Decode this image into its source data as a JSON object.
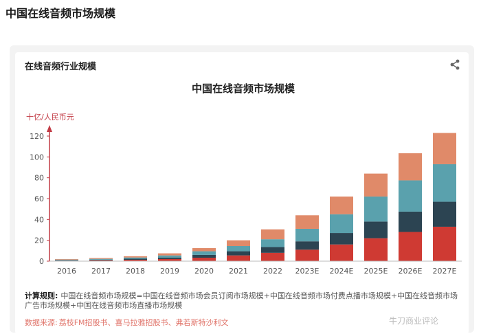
{
  "page": {
    "title": "中国在线音频市场规模"
  },
  "card": {
    "title": "在线音频行业规模"
  },
  "icons": {
    "share": "share-icon"
  },
  "formula": {
    "label": "计算规则:",
    "text": "中国在线音频市场规模=中国在线音频市场会员订阅市场规模+中国在线音频市场付费点播市场规模+中国在线音频市场广告市场规模+中国在线音频市场直播市场规模"
  },
  "source": {
    "label": "数据来源:",
    "text": "荔枝FM招股书、喜马拉雅招股书、弗若斯特沙利文"
  },
  "watermark": "牛刀商业评论",
  "colors": {
    "red": "#cf3a33",
    "navy": "#2c4452",
    "teal": "#5aa1ad",
    "salmon": "#e08a69",
    "axis": "#c23b45"
  },
  "chart_data": {
    "type": "bar",
    "stacked": true,
    "title": "中国在线音频市场规模",
    "ylabel": "十亿/人民币元",
    "ylim": [
      0,
      125
    ],
    "yticks": [
      0,
      20,
      40,
      60,
      80,
      100,
      120
    ],
    "grid": false,
    "categories": [
      "2016",
      "2017",
      "2018",
      "2019",
      "2020",
      "2021",
      "2022",
      "2023E",
      "2024E",
      "2025E",
      "2026E",
      "2027E"
    ],
    "series": [
      {
        "color": "#cf3a33",
        "values": [
          0.5,
          0.8,
          1.3,
          2.0,
          3.3,
          5.5,
          8.0,
          11.0,
          16.0,
          22.0,
          28.0,
          33.0
        ]
      },
      {
        "color": "#2c4452",
        "values": [
          0.4,
          0.6,
          1.0,
          1.5,
          2.7,
          4.0,
          5.5,
          8.0,
          11.0,
          16.0,
          19.5,
          24.0
        ]
      },
      {
        "color": "#5aa1ad",
        "values": [
          0.6,
          0.8,
          1.2,
          2.0,
          3.5,
          5.0,
          7.5,
          12.0,
          18.0,
          24.0,
          30.0,
          36.0
        ]
      },
      {
        "color": "#e08a69",
        "values": [
          0.5,
          0.8,
          1.2,
          2.0,
          3.0,
          5.5,
          9.5,
          13.0,
          17.0,
          22.0,
          26.0,
          30.0
        ]
      }
    ]
  }
}
